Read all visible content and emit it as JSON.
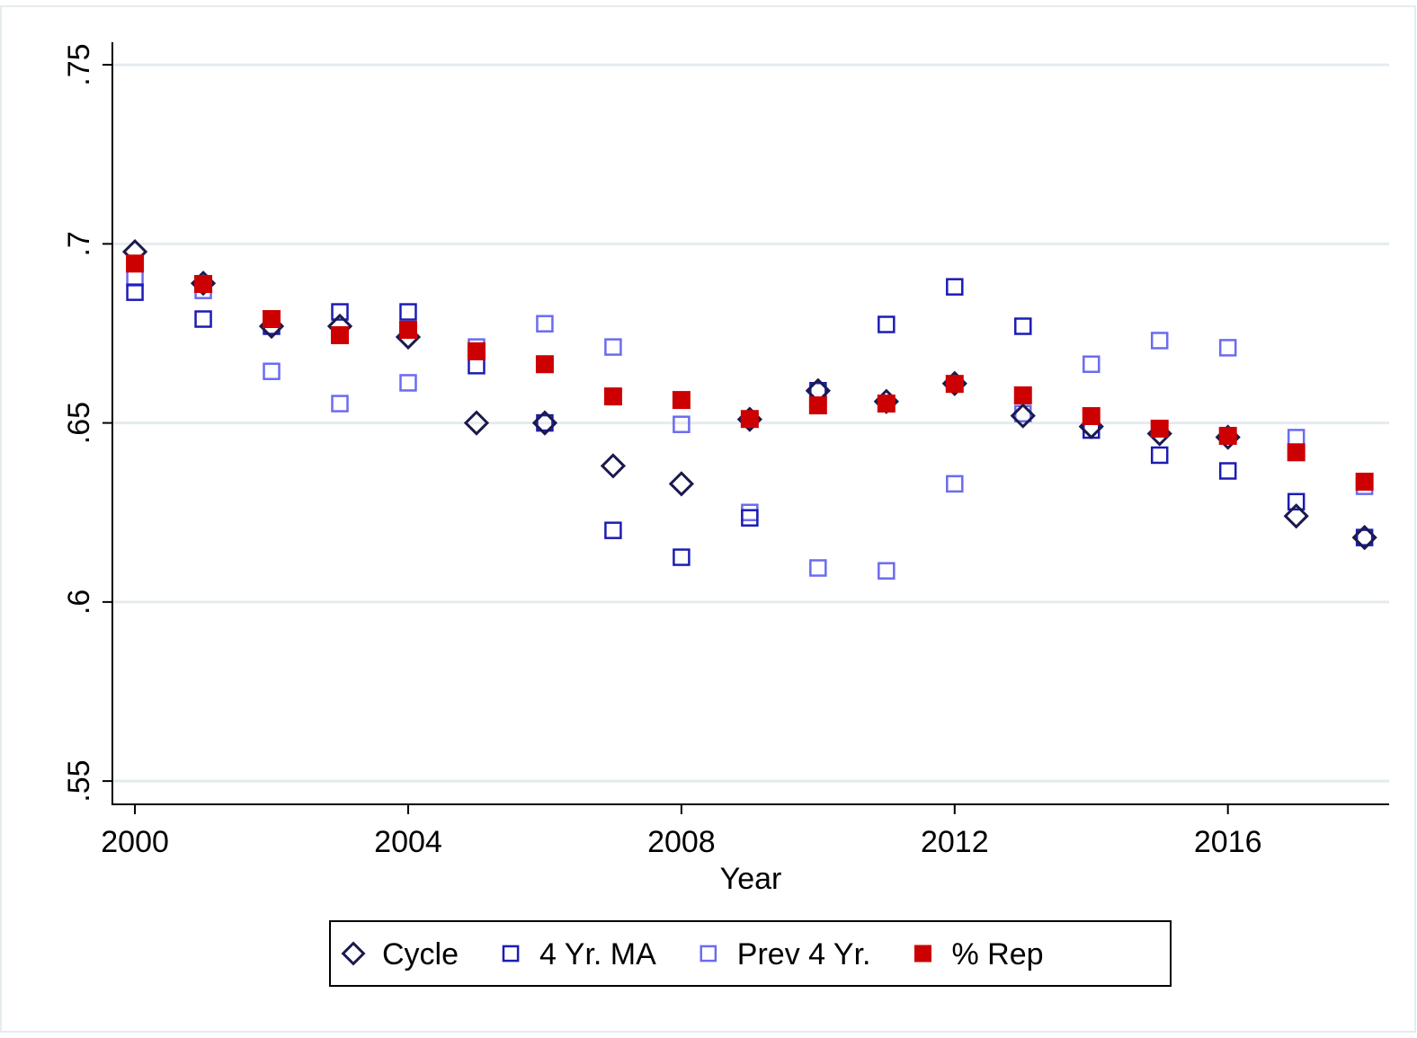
{
  "chart_data": {
    "type": "scatter",
    "x_label": "Year",
    "x": [
      2000,
      2001,
      2002,
      2003,
      2004,
      2005,
      2006,
      2007,
      2008,
      2009,
      2010,
      2011,
      2012,
      2013,
      2014,
      2015,
      2016,
      2017,
      2018
    ],
    "series": [
      {
        "name": "Prev 4 Yr.",
        "color": "#6b6bf0",
        "marker": "square",
        "filled": false,
        "values": [
          0.6905,
          0.687,
          0.6644,
          0.6554,
          0.6612,
          0.6712,
          0.6777,
          0.6712,
          0.6496,
          0.625,
          0.6095,
          0.6087,
          0.633,
          0.6526,
          0.6664,
          0.673,
          0.671,
          0.6459,
          0.6323
        ]
      },
      {
        "name": "4 Yr. MA",
        "color": "#1c1cb4",
        "marker": "square",
        "filled": false,
        "values": [
          0.6865,
          0.679,
          0.677,
          0.681,
          0.681,
          0.666,
          0.65,
          0.62,
          0.6125,
          0.6235,
          0.659,
          0.6775,
          0.688,
          0.677,
          0.648,
          0.641,
          0.6366,
          0.628,
          0.618
        ]
      },
      {
        "name": "Cycle",
        "color": "#1a1a4e",
        "marker": "diamond",
        "filled": false,
        "values": [
          0.6978,
          0.689,
          0.677,
          0.677,
          0.674,
          0.65,
          0.65,
          0.638,
          0.633,
          0.651,
          0.659,
          0.656,
          0.661,
          0.652,
          0.649,
          0.647,
          0.646,
          0.624,
          0.618
        ]
      },
      {
        "name": "% Rep",
        "color": "#cc0000",
        "marker": "square",
        "filled": true,
        "values": [
          0.6945,
          0.6888,
          0.679,
          0.6745,
          0.676,
          0.67,
          0.6664,
          0.6574,
          0.6564,
          0.6511,
          0.6549,
          0.6554,
          0.6609,
          0.6577,
          0.6519,
          0.6484,
          0.6464,
          0.6418,
          0.6336
        ]
      }
    ],
    "legend_order": [
      2,
      1,
      0,
      3
    ],
    "legend": "bottom",
    "xlim": [
      1999.67,
      2018.36
    ],
    "xticks": [
      2000,
      2004,
      2008,
      2012,
      2016
    ],
    "ylim": [
      0.5435,
      0.7563
    ],
    "yticks": [
      {
        "value": 0.55,
        "label": ".55"
      },
      {
        "value": 0.6,
        "label": ".6"
      },
      {
        "value": 0.65,
        "label": ".65"
      },
      {
        "value": 0.7,
        "label": ".7"
      },
      {
        "value": 0.75,
        "label": ".75"
      }
    ],
    "grid": true
  }
}
